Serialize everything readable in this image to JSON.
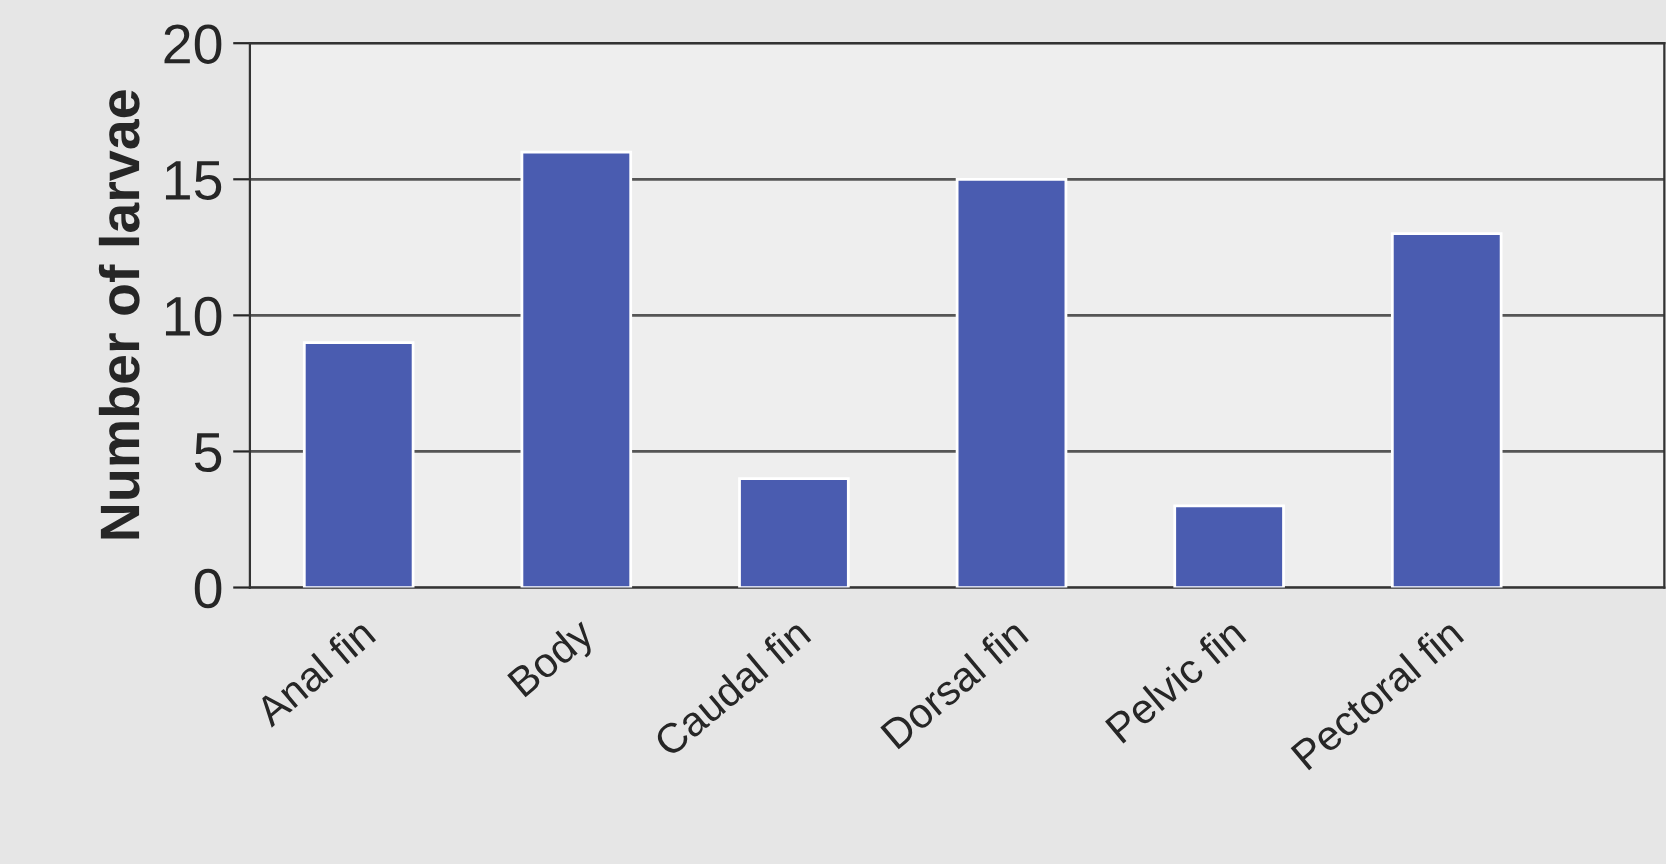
{
  "chart_data": {
    "type": "bar",
    "ylabel": "Number of larvae",
    "categories": [
      "Anal fin",
      "Body",
      "Caudal fin",
      "Dorsal fin",
      "Pelvic fin",
      "Pectoral fin"
    ],
    "values": [
      9,
      16,
      4,
      15,
      3,
      13
    ],
    "color": "#4a5cb0",
    "ylim": [
      0,
      20
    ],
    "yticks": [
      0,
      5,
      10,
      15,
      20
    ],
    "grid": "y",
    "legend": false
  }
}
